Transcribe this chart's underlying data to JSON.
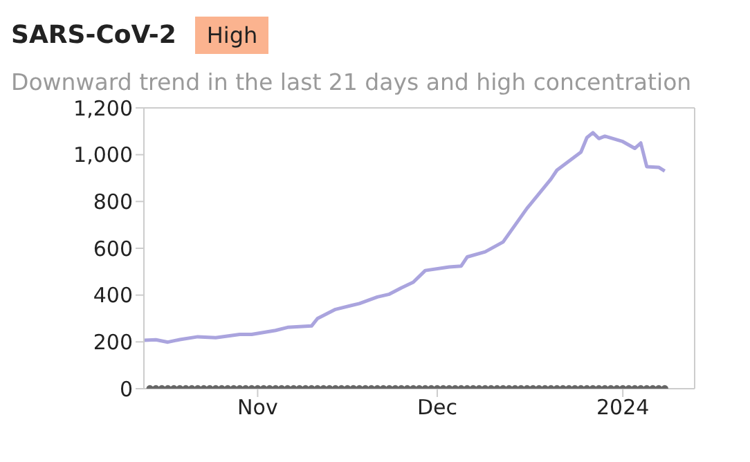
{
  "chart_data": {
    "type": "line",
    "title": "SARS-CoV-2",
    "subtitle": "Downward trend in the last 21 days and high concentration",
    "annotations": [
      "High"
    ],
    "xlim": [
      "2023-10-13",
      "2024-01-13"
    ],
    "xticks": [
      {
        "value": "2023-11-01",
        "label": "Nov"
      },
      {
        "value": "2023-12-01",
        "label": "Dec"
      },
      {
        "value": "2024-01-01",
        "label": "2024"
      }
    ],
    "ylim": [
      0,
      1200
    ],
    "yticks": [
      {
        "value": 0,
        "label": "0"
      },
      {
        "value": 200,
        "label": "200"
      },
      {
        "value": 400,
        "label": "400"
      },
      {
        "value": 600,
        "label": "600"
      },
      {
        "value": 800,
        "label": "800"
      },
      {
        "value": 1000,
        "label": "1,000"
      },
      {
        "value": 1200,
        "label": "1,200"
      }
    ],
    "grid": false,
    "legend": false,
    "series": [
      {
        "color": "#aaa4de",
        "marker": "none",
        "line_style": "solid",
        "x": [
          "2023-10-13",
          "2023-10-15",
          "2023-10-17",
          "2023-10-19",
          "2023-10-22",
          "2023-10-25",
          "2023-10-29",
          "2023-10-31",
          "2023-11-04",
          "2023-11-06",
          "2023-11-10",
          "2023-11-11",
          "2023-11-14",
          "2023-11-18",
          "2023-11-21",
          "2023-11-23",
          "2023-11-25",
          "2023-11-27",
          "2023-11-29",
          "2023-12-03",
          "2023-12-05",
          "2023-12-06",
          "2023-12-09",
          "2023-12-12",
          "2023-12-16",
          "2023-12-20",
          "2023-12-21",
          "2023-12-25",
          "2023-12-26",
          "2023-12-27",
          "2023-12-28",
          "2023-12-29",
          "2024-01-01",
          "2024-01-03",
          "2024-01-04",
          "2024-01-05",
          "2024-01-07",
          "2024-01-08"
        ],
        "values": [
          207,
          209,
          199,
          210,
          222,
          218,
          232,
          232,
          249,
          262,
          268,
          300,
          339,
          364,
          392,
          404,
          431,
          455,
          505,
          520,
          524,
          563,
          585,
          627,
          771,
          896,
          934,
          1011,
          1073,
          1094,
          1069,
          1079,
          1056,
          1027,
          1050,
          949,
          946,
          930
        ]
      },
      {
        "type": "scatter",
        "color": "#666666",
        "marker": "circle",
        "x": [
          "2023-10-14",
          "2023-10-15",
          "2023-10-16",
          "2023-10-17",
          "2023-10-18",
          "2023-10-19",
          "2023-10-20",
          "2023-10-21",
          "2023-10-22",
          "2023-10-23",
          "2023-10-24",
          "2023-10-25",
          "2023-10-26",
          "2023-10-27",
          "2023-10-28",
          "2023-10-29",
          "2023-10-30",
          "2023-10-31",
          "2023-11-01",
          "2023-11-02",
          "2023-11-03",
          "2023-11-04",
          "2023-11-05",
          "2023-11-06",
          "2023-11-07",
          "2023-11-08",
          "2023-11-09",
          "2023-11-10",
          "2023-11-11",
          "2023-11-12",
          "2023-11-13",
          "2023-11-14",
          "2023-11-15",
          "2023-11-16",
          "2023-11-17",
          "2023-11-18",
          "2023-11-19",
          "2023-11-20",
          "2023-11-21",
          "2023-11-22",
          "2023-11-23",
          "2023-11-24",
          "2023-11-25",
          "2023-11-26",
          "2023-11-27",
          "2023-11-28",
          "2023-11-29",
          "2023-11-30",
          "2023-12-01",
          "2023-12-02",
          "2023-12-03",
          "2023-12-04",
          "2023-12-05",
          "2023-12-06",
          "2023-12-07",
          "2023-12-08",
          "2023-12-09",
          "2023-12-10",
          "2023-12-11",
          "2023-12-12",
          "2023-12-13",
          "2023-12-14",
          "2023-12-15",
          "2023-12-16",
          "2023-12-17",
          "2023-12-18",
          "2023-12-19",
          "2023-12-20",
          "2023-12-21",
          "2023-12-22",
          "2023-12-23",
          "2023-12-24",
          "2023-12-25",
          "2023-12-26",
          "2023-12-27",
          "2023-12-28",
          "2023-12-29",
          "2023-12-30",
          "2023-12-31",
          "2024-01-01",
          "2024-01-02",
          "2024-01-03",
          "2024-01-04",
          "2024-01-05",
          "2024-01-06",
          "2024-01-07",
          "2024-01-08"
        ],
        "values": [
          0,
          0,
          0,
          0,
          0,
          0,
          0,
          0,
          0,
          0,
          0,
          0,
          0,
          0,
          0,
          0,
          0,
          0,
          0,
          0,
          0,
          0,
          0,
          0,
          0,
          0,
          0,
          0,
          0,
          0,
          0,
          0,
          0,
          0,
          0,
          0,
          0,
          0,
          0,
          0,
          0,
          0,
          0,
          0,
          0,
          0,
          0,
          0,
          0,
          0,
          0,
          0,
          0,
          0,
          0,
          0,
          0,
          0,
          0,
          0,
          0,
          0,
          0,
          0,
          0,
          0,
          0,
          0,
          0,
          0,
          0,
          0,
          0,
          0,
          0,
          0,
          0,
          0,
          0,
          0,
          0,
          0,
          0,
          0,
          0,
          0,
          0
        ]
      }
    ]
  }
}
